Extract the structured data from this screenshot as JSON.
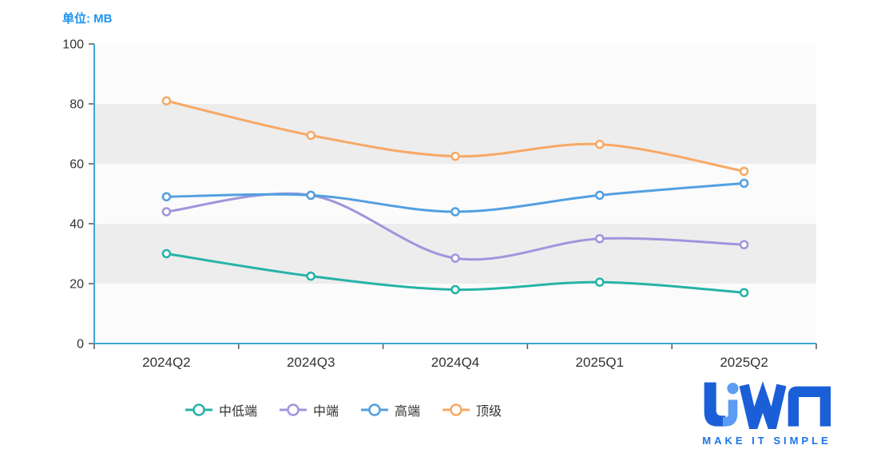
{
  "title": "单位: MB",
  "chart_data": {
    "type": "line",
    "title": "单位: MB",
    "xlabel": "",
    "ylabel": "",
    "categories": [
      "2024Q2",
      "2024Q3",
      "2024Q4",
      "2025Q1",
      "2025Q2"
    ],
    "series": [
      {
        "name": "中低端",
        "color": "#26b3a7",
        "values": [
          30,
          22.5,
          18,
          20.5,
          17
        ]
      },
      {
        "name": "中端",
        "color": "#a095dd",
        "values": [
          44,
          49.5,
          28.5,
          35,
          33
        ]
      },
      {
        "name": "高端",
        "color": "#539fe1",
        "values": [
          49,
          49.5,
          44,
          49.5,
          53.5
        ]
      },
      {
        "name": "顶级",
        "color": "#f8a865",
        "values": [
          81,
          69.5,
          62.5,
          66.5,
          57.5
        ]
      }
    ],
    "ylim": [
      0,
      100
    ],
    "y_ticks": [
      0,
      20,
      40,
      60,
      80,
      100
    ],
    "grid": "horizontal-alternating-bands",
    "band_color": "#ededed",
    "plot_bg_color": "#fbfbfb",
    "axis_color": "#3fa6d3",
    "tick_color": "#555555",
    "marker": "hollow-circle",
    "smooth": true,
    "legend_position": "bottom-center"
  },
  "logo": {
    "text": "LiWA",
    "tagline": "MAKE IT SIMPLE",
    "primary_color": "#1a5fd7",
    "accent_color": "#5d9cf3",
    "tagline_color": "#1b74e8"
  }
}
